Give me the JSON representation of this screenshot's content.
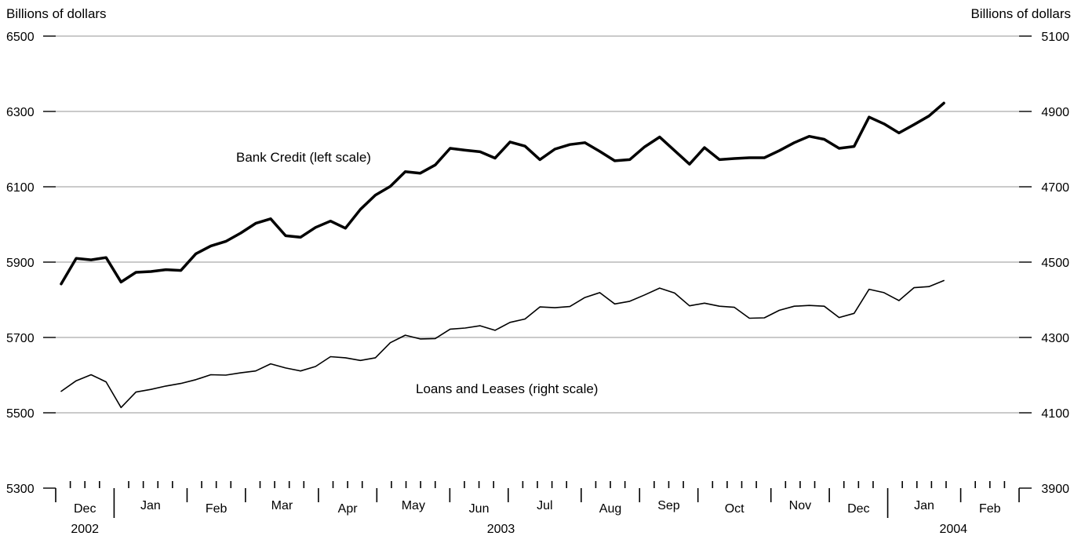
{
  "chart_data": {
    "type": "line",
    "left_axis": {
      "title": "Billions of dollars",
      "range": [
        5300,
        6500
      ],
      "ticks": [
        "6500",
        "6300",
        "6100",
        "5900",
        "5700",
        "5500",
        "5300"
      ]
    },
    "right_axis": {
      "title": "Billions of dollars",
      "range": [
        3900,
        5100
      ],
      "ticks": [
        "5100",
        "4900",
        "4700",
        "4500",
        "4300",
        "4100",
        "3900"
      ]
    },
    "grid": true,
    "months": [
      "Dec",
      "Jan",
      "Feb",
      "Mar",
      "Apr",
      "May",
      "Jun",
      "Jul",
      "Aug",
      "Sep",
      "Oct",
      "Nov",
      "Dec",
      "Jan",
      "Feb"
    ],
    "years": [
      "2002",
      "2003",
      "2004"
    ],
    "weeks_per_month": [
      4,
      5,
      4,
      5,
      4,
      5,
      4,
      5,
      4,
      4,
      5,
      4,
      4,
      5,
      4
    ],
    "series": [
      {
        "name": "Bank Credit (left scale)",
        "axis": "left",
        "values": [
          5842,
          5910,
          5906,
          5912,
          5847,
          5873,
          5875,
          5880,
          5878,
          5922,
          5943,
          5955,
          5977,
          6003,
          6015,
          5970,
          5966,
          5992,
          6009,
          5990,
          6040,
          6078,
          6101,
          6140,
          6136,
          6158,
          6202,
          6197,
          6193,
          6176,
          6219,
          6208,
          6172,
          6200,
          6212,
          6217,
          6194,
          6169,
          6172,
          6206,
          6232,
          6196,
          6160,
          6204,
          6172,
          6175,
          6177,
          6177,
          6196,
          6217,
          6234,
          6226,
          6202,
          6207,
          6285,
          6267,
          6243,
          6265,
          6288,
          6322
        ]
      },
      {
        "name": "Loans and Leases (right scale)",
        "axis": "right",
        "values": [
          4157,
          4185,
          4201,
          4182,
          4114,
          4155,
          4162,
          4171,
          4178,
          4188,
          4201,
          4200,
          4206,
          4211,
          4230,
          4219,
          4211,
          4223,
          4249,
          4246,
          4239,
          4246,
          4286,
          4306,
          4296,
          4297,
          4322,
          4325,
          4331,
          4319,
          4340,
          4349,
          4381,
          4379,
          4382,
          4406,
          4419,
          4389,
          4396,
          4413,
          4431,
          4418,
          4384,
          4391,
          4383,
          4380,
          4351,
          4352,
          4372,
          4383,
          4385,
          4383,
          4353,
          4364,
          4428,
          4419,
          4398,
          4432,
          4435,
          4451
        ]
      }
    ],
    "annotations": [
      "Bank Credit (left scale)",
      "Loans and Leases (right scale)"
    ]
  }
}
